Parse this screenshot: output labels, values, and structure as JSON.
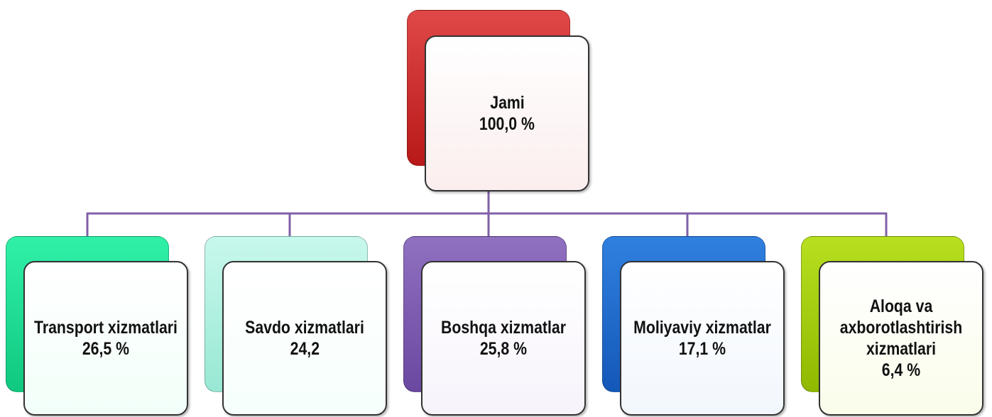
{
  "root": {
    "label": "Jami",
    "value": "100,0 %"
  },
  "children": [
    {
      "label": "Transport xizmatlari",
      "value": "26,5 %"
    },
    {
      "label": "Savdo xizmatlari",
      "value": "24,2"
    },
    {
      "label": "Boshqa xizmatlar",
      "value": "25,8 %"
    },
    {
      "label": "Moliyaviy xizmatlar",
      "value": "17,1 %"
    },
    {
      "label": "Aloqa va axborotlashtirish xizmatlari",
      "value": "6,4 %"
    }
  ]
}
